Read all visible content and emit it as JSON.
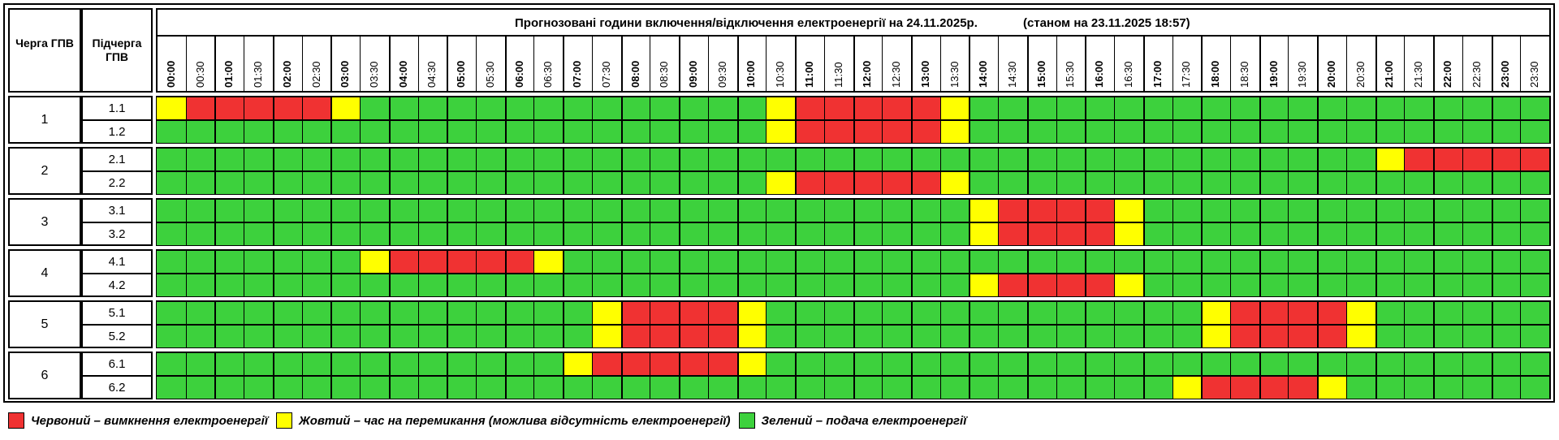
{
  "header": {
    "queue_label": "Черга ГПВ",
    "subqueue_label": "Підчерга ГПВ",
    "title": "Прогнозовані години включення/відключення електроенергії на 24.11.2025р.",
    "status": "(станом на 23.11.2025 18:57)"
  },
  "times": [
    "00:00",
    "00:30",
    "01:00",
    "01:30",
    "02:00",
    "02:30",
    "03:00",
    "03:30",
    "04:00",
    "04:30",
    "05:00",
    "05:30",
    "06:00",
    "06:30",
    "07:00",
    "07:30",
    "08:00",
    "08:30",
    "09:00",
    "09:30",
    "10:00",
    "10:30",
    "11:00",
    "11:30",
    "12:00",
    "12:30",
    "13:00",
    "13:30",
    "14:00",
    "14:30",
    "15:00",
    "15:30",
    "16:00",
    "16:30",
    "17:00",
    "17:30",
    "18:00",
    "18:30",
    "19:00",
    "19:30",
    "20:00",
    "20:30",
    "21:00",
    "21:30",
    "22:00",
    "22:30",
    "23:00",
    "23:30"
  ],
  "colors": {
    "R": "#f03232",
    "Y": "#ffff00",
    "G": "#3dd13d"
  },
  "queues": [
    {
      "name": "1",
      "rows": [
        {
          "name": "1.1",
          "slots": "YRRRRRYGGGGGGGGGGGGGGYRRRRRYGGGGGGGGGGGGGGGGGGGG"
        },
        {
          "name": "1.2",
          "slots": "GGGGGGGGGGGGGGGGGGGGGYRRRRRYGGGGGGGGGGGGGGGGGGGG"
        }
      ]
    },
    {
      "name": "2",
      "rows": [
        {
          "name": "2.1",
          "slots": "GGGGGGGGGGGGGGGGGGGGGGGGGGGGGGGGGGGGGGGGGGYRRRRR"
        },
        {
          "name": "2.2",
          "slots": "GGGGGGGGGGGGGGGGGGGGGYRRRRRYGGGGGGGGGGGGGGGGGGGG"
        }
      ]
    },
    {
      "name": "3",
      "rows": [
        {
          "name": "3.1",
          "slots": "GGGGGGGGGGGGGGGGGGGGGGGGGGGGYRRRRYGGGGGGGGGGGGGG"
        },
        {
          "name": "3.2",
          "slots": "GGGGGGGGGGGGGGGGGGGGGGGGGGGGYRRRRYGGGGGGGGGGGGGG"
        }
      ]
    },
    {
      "name": "4",
      "rows": [
        {
          "name": "4.1",
          "slots": "GGGGGGGYRRRRRYGGGGGGGGGGGGGGGGGGGGGGGGGGGGGGGGGG"
        },
        {
          "name": "4.2",
          "slots": "GGGGGGGGGGGGGGGGGGGGGGGGGGGGYRRRRYGGGGGGGGGGGGGG"
        }
      ]
    },
    {
      "name": "5",
      "rows": [
        {
          "name": "5.1",
          "slots": "GGGGGGGGGGGGGGGYRRRRYGGGGGGGGGGGGGGGYRRRRYGGGGGG"
        },
        {
          "name": "5.2",
          "slots": "GGGGGGGGGGGGGGGYRRRRYGGGGGGGGGGGGGGGYRRRRYGGGGGG"
        }
      ]
    },
    {
      "name": "6",
      "rows": [
        {
          "name": "6.1",
          "slots": "GGGGGGGGGGGGGGYRRRRRYGGGGGGGGGGGGGGGGGGGGGGGGGGG"
        },
        {
          "name": "6.2",
          "slots": "GGGGGGGGGGGGGGGGGGGGGGGGGGGGGGGGGGGYRRRRYGGGGGGG"
        }
      ]
    }
  ],
  "legend": [
    {
      "color": "#f03232",
      "label": "Червоний – вимкнення електроенергії"
    },
    {
      "color": "#ffff00",
      "label": "Жовтий – час на перемикання (можлива відсутність електроенергії)"
    },
    {
      "color": "#3dd13d",
      "label": "Зелений – подача електроенергії"
    }
  ]
}
